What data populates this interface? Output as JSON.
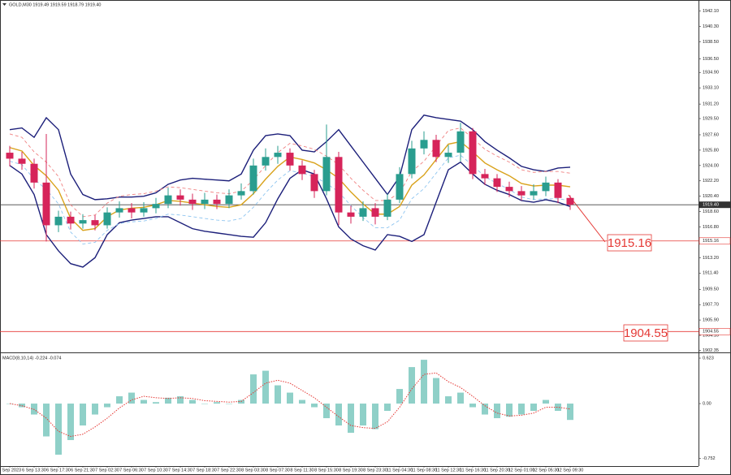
{
  "chart_data": [
    {
      "type": "candlestick",
      "title": "GOLD,M30 1919.49 1919.59 1918.79 1919.40",
      "categories": [
        "6 Sep 2023",
        null,
        "6 Sep 13:30",
        null,
        "6 Sep 17:30",
        null,
        "6 Sep 21:30",
        null,
        "7 Sep 02:30",
        null,
        "7 Sep 06:30",
        null,
        "7 Sep 10:30",
        null,
        "7 Sep 14:30",
        null,
        "7 Sep 18:30",
        null,
        "7 Sep 22:30",
        null,
        "8 Sep 03:30",
        null,
        "8 Sep 07:30",
        null,
        "8 Sep 11:30",
        null,
        "8 Sep 15:30",
        null,
        "8 Sep 19:30",
        null,
        "8 Sep 23:30",
        null,
        "11 Sep 04:30",
        null,
        "11 Sep 08:30",
        null,
        "11 Sep 12:30",
        null,
        "11 Sep 16:30",
        null,
        "11 Sep 20:30",
        null,
        "12 Sep 01:00",
        null,
        "12 Sep 05:30",
        null,
        "12 Sep 09:30"
      ],
      "open": [
        1925.5,
        1924.8,
        1924.2,
        1922.0,
        1917.0,
        1918.0,
        1917.2,
        1917.6,
        1917.0,
        1918.5,
        1919.0,
        1918.5,
        1919.0,
        1919.5,
        1920.5,
        1920.0,
        1919.5,
        1920.0,
        1919.5,
        1920.5,
        1921.0,
        1924.0,
        1925.0,
        1925.5,
        1924.0,
        1923.0,
        1921.0,
        1925.0,
        1918.5,
        1918.0,
        1919.0,
        1918.0,
        1920.0,
        1923.0,
        1926.0,
        1927.0,
        1925.0,
        1925.5,
        1928.0,
        1923.0,
        1922.5,
        1921.5,
        1921.0,
        1920.5,
        1921.0,
        1922.0,
        1920.2
      ],
      "high": [
        1926.3,
        1925.6,
        1924.8,
        1927.7,
        1918.7,
        1918.6,
        1918.3,
        1918.2,
        1919.1,
        1919.8,
        1919.6,
        1919.7,
        1920.2,
        1921.4,
        1921.2,
        1920.7,
        1920.8,
        1920.6,
        1921.2,
        1921.9,
        1924.8,
        1926.0,
        1926.3,
        1926.0,
        1924.6,
        1923.5,
        1928.8,
        1925.6,
        1919.3,
        1919.8,
        1919.6,
        1920.7,
        1923.8,
        1926.9,
        1928.0,
        1927.6,
        1926.4,
        1929.0,
        1928.4,
        1923.6,
        1923.0,
        1922.1,
        1921.6,
        1921.8,
        1922.7,
        1922.4,
        1920.5
      ],
      "low": [
        1923.9,
        1923.5,
        1921.3,
        1915.1,
        1916.2,
        1916.5,
        1916.6,
        1916.4,
        1916.6,
        1917.9,
        1917.8,
        1918.0,
        1918.4,
        1919.0,
        1919.3,
        1918.8,
        1918.9,
        1918.9,
        1919.0,
        1920.0,
        1920.6,
        1923.4,
        1924.2,
        1923.4,
        1922.3,
        1920.2,
        1920.5,
        1917.0,
        1917.2,
        1917.5,
        1917.1,
        1917.6,
        1919.6,
        1922.5,
        1925.3,
        1924.4,
        1924.3,
        1924.5,
        1922.4,
        1921.7,
        1920.9,
        1920.3,
        1919.9,
        1920.0,
        1920.4,
        1919.6,
        1918.8
      ],
      "close": [
        1924.8,
        1924.2,
        1922.0,
        1917.0,
        1918.0,
        1917.2,
        1917.6,
        1917.0,
        1918.5,
        1919.0,
        1918.5,
        1919.0,
        1919.5,
        1920.5,
        1920.0,
        1919.5,
        1920.0,
        1919.5,
        1920.5,
        1921.0,
        1924.0,
        1925.0,
        1925.5,
        1924.0,
        1923.0,
        1921.0,
        1925.0,
        1918.5,
        1918.0,
        1919.0,
        1918.0,
        1920.0,
        1923.0,
        1926.0,
        1927.0,
        1925.0,
        1925.5,
        1928.0,
        1923.0,
        1922.5,
        1921.5,
        1921.0,
        1920.5,
        1921.0,
        1922.0,
        1920.2,
        1919.4
      ],
      "up_color": "#2a9d8f",
      "down_color": "#d6245a",
      "series": [
        {
          "color": "#1c1f7a",
          "dash": "none",
          "values": [
            1928.2,
            1928.4,
            1927.3,
            1929.6,
            1928.2,
            1923.0,
            1920.6,
            1920.0,
            1920.1,
            1920.3,
            1920.3,
            1920.4,
            1920.8,
            1921.8,
            1922.3,
            1922.5,
            1922.4,
            1922.3,
            1922.2,
            1923.0,
            1925.8,
            1927.5,
            1927.7,
            1927.5,
            1925.8,
            1925.6,
            1926.8,
            1928.2,
            1926.3,
            1924.4,
            1922.5,
            1920.6,
            1922.7,
            1928.2,
            1929.9,
            1929.6,
            1929.4,
            1929.2,
            1928.2,
            1926.8,
            1925.8,
            1924.9,
            1923.9,
            1923.5,
            1923.3,
            1923.7,
            1923.8
          ]
        },
        {
          "color": "#1c1f7a",
          "dash": "none",
          "values": [
            1924.0,
            1923.0,
            1920.6,
            1915.9,
            1914.0,
            1912.5,
            1912.1,
            1913.2,
            1915.9,
            1917.3,
            1917.6,
            1917.8,
            1918.0,
            1918.0,
            1917.3,
            1916.6,
            1916.3,
            1916.1,
            1915.9,
            1915.7,
            1915.6,
            1917.3,
            1920.1,
            1922.5,
            1923.5,
            1923.0,
            1920.1,
            1916.8,
            1915.4,
            1914.6,
            1914.1,
            1915.9,
            1915.7,
            1915.1,
            1915.9,
            1919.7,
            1923.5,
            1924.4,
            1923.0,
            1921.8,
            1921.1,
            1920.6,
            1919.9,
            1919.7,
            1920.0,
            1919.7,
            1919.2
          ]
        },
        {
          "color": "#d9a21b",
          "dash": "none",
          "values": [
            1926.1,
            1925.7,
            1924.0,
            1922.8,
            1921.1,
            1917.8,
            1916.4,
            1916.6,
            1918.0,
            1918.8,
            1919.0,
            1919.1,
            1919.4,
            1919.9,
            1919.8,
            1919.6,
            1919.4,
            1919.2,
            1919.1,
            1919.4,
            1920.7,
            1922.4,
            1923.9,
            1925.0,
            1924.7,
            1924.3,
            1923.5,
            1922.5,
            1920.9,
            1919.5,
            1918.3,
            1918.3,
            1919.2,
            1921.7,
            1922.9,
            1924.7,
            1926.5,
            1926.8,
            1925.6,
            1924.3,
            1923.5,
            1922.8,
            1921.9,
            1921.6,
            1921.7,
            1921.7,
            1921.5
          ]
        },
        {
          "color": "#f08080",
          "dash": "4 3",
          "values": [
            1927.7,
            1927.3,
            1925.6,
            1924.4,
            1922.7,
            1919.4,
            1918.0,
            1918.2,
            1919.6,
            1920.4,
            1920.6,
            1920.7,
            1921.0,
            1921.5,
            1921.4,
            1921.2,
            1921.0,
            1920.8,
            1920.7,
            1921.0,
            1922.3,
            1924.0,
            1925.5,
            1926.6,
            1926.3,
            1925.9,
            1925.1,
            1924.1,
            1922.5,
            1921.1,
            1919.9,
            1919.9,
            1920.8,
            1923.3,
            1924.5,
            1926.3,
            1928.1,
            1928.4,
            1927.2,
            1925.9,
            1925.1,
            1924.4,
            1923.5,
            1923.2,
            1923.3,
            1923.3,
            1923.1
          ]
        },
        {
          "color": "#8ec5f0",
          "dash": "4 3",
          "values": [
            1924.5,
            1924.1,
            1922.4,
            1921.2,
            1919.5,
            1916.2,
            1914.8,
            1915.0,
            1916.4,
            1917.2,
            1917.4,
            1917.5,
            1917.8,
            1918.3,
            1918.2,
            1918.0,
            1917.8,
            1917.6,
            1917.5,
            1917.8,
            1919.1,
            1920.8,
            1922.3,
            1923.4,
            1923.1,
            1922.7,
            1921.9,
            1920.9,
            1919.3,
            1917.9,
            1916.7,
            1916.7,
            1917.6,
            1920.1,
            1921.3,
            1923.1,
            1924.9,
            1925.2,
            1924.0,
            1922.7,
            1921.9,
            1921.2,
            1920.3,
            1920.0,
            1920.1,
            1920.1,
            1919.9
          ]
        }
      ],
      "ylim": [
        1902.2,
        1943.2
      ],
      "yticks": [
        {
          "value": 1942.1,
          "label": "1942.10"
        },
        {
          "value": 1940.3,
          "label": "1940.30"
        },
        {
          "value": 1938.5,
          "label": "1938.50"
        },
        {
          "value": 1936.5,
          "label": "1936.50"
        },
        {
          "value": 1934.9,
          "label": "1934.90"
        },
        {
          "value": 1933.1,
          "label": "1933.10"
        },
        {
          "value": 1931.2,
          "label": "1931.20"
        },
        {
          "value": 1929.5,
          "label": "1929.50"
        },
        {
          "value": 1927.6,
          "label": "1927.60"
        },
        {
          "value": 1925.8,
          "label": "1925.80"
        },
        {
          "value": 1924,
          "label": "1924.00"
        },
        {
          "value": 1922.2,
          "label": "1922.20"
        },
        {
          "value": 1920.4,
          "label": "1920.40"
        },
        {
          "value": 1918.6,
          "label": "1918.60"
        },
        {
          "value": 1916.8,
          "label": "1916.80"
        },
        {
          "value": 1915,
          "label": "1915.00"
        },
        {
          "value": 1913.2,
          "label": "1913.20"
        },
        {
          "value": 1911.4,
          "label": "1911.40"
        },
        {
          "value": 1909.5,
          "label": "1909.50"
        },
        {
          "value": 1907.7,
          "label": "1907.70"
        },
        {
          "value": 1905.9,
          "label": "1905.90"
        },
        {
          "value": 1904.1,
          "label": "1904.10"
        },
        {
          "value": 1902.35,
          "label": "1902.35"
        }
      ],
      "current_price": {
        "value": 1919.4,
        "label": "1919.40"
      },
      "levels": [
        {
          "value": 1915.16,
          "label": "1915.16"
        },
        {
          "value": 1904.55,
          "label": "1904.55"
        }
      ],
      "level_color": "#e53935"
    },
    {
      "type": "macd",
      "title": "MACD(8,10,14) -0.224 -0.074",
      "values": [
        0.0,
        -0.05,
        -0.15,
        -0.45,
        -0.7,
        -0.5,
        -0.3,
        -0.15,
        -0.05,
        0.1,
        0.15,
        0.05,
        0.02,
        0.08,
        0.1,
        0.05,
        0.0,
        0.02,
        0.0,
        0.05,
        0.4,
        0.45,
        0.25,
        0.15,
        0.05,
        -0.05,
        -0.2,
        -0.3,
        -0.4,
        -0.3,
        -0.35,
        -0.1,
        0.2,
        0.5,
        0.6,
        0.35,
        0.1,
        0.15,
        -0.05,
        -0.15,
        -0.2,
        -0.18,
        -0.15,
        -0.1,
        0.05,
        -0.1,
        -0.224
      ],
      "signal": [
        0.0,
        -0.03,
        -0.08,
        -0.2,
        -0.38,
        -0.45,
        -0.42,
        -0.32,
        -0.2,
        -0.06,
        0.05,
        0.1,
        0.08,
        0.07,
        0.08,
        0.07,
        0.04,
        0.03,
        0.02,
        0.03,
        0.15,
        0.28,
        0.32,
        0.28,
        0.18,
        0.08,
        -0.05,
        -0.18,
        -0.3,
        -0.33,
        -0.34,
        -0.25,
        -0.05,
        0.2,
        0.4,
        0.42,
        0.3,
        0.22,
        0.1,
        -0.03,
        -0.13,
        -0.17,
        -0.16,
        -0.13,
        -0.05,
        -0.05,
        -0.074
      ],
      "color": "#8fd0c8",
      "signal_color": "#e53935",
      "ylim": [
        -0.845,
        0.679
      ],
      "yticks": [
        {
          "value": 0.623,
          "label": "0.623"
        },
        {
          "value": 0,
          "label": "0.00"
        },
        {
          "value": -0.752,
          "label": "-0.752"
        }
      ]
    }
  ]
}
